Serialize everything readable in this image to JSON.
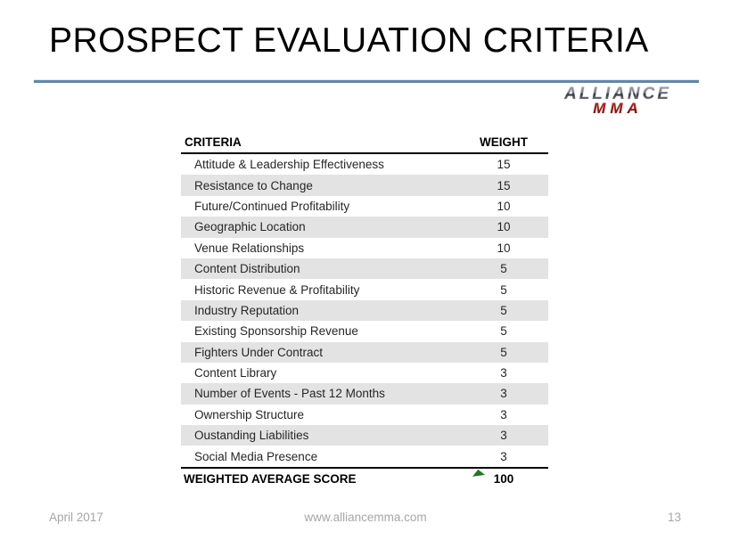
{
  "slide": {
    "title": "PROSPECT EVALUATION CRITERIA",
    "logo": {
      "line1": "ALLIANCE",
      "line2": "MMA"
    },
    "table": {
      "headers": {
        "criteria": "CRITERIA",
        "weight": "WEIGHT"
      },
      "rows": [
        {
          "criteria": "Attitude & Leadership Effectiveness",
          "weight": "15",
          "shaded": false
        },
        {
          "criteria": "Resistance to Change",
          "weight": "15",
          "shaded": true
        },
        {
          "criteria": "Future/Continued Profitability",
          "weight": "10",
          "shaded": false
        },
        {
          "criteria": "Geographic Location",
          "weight": "10",
          "shaded": true
        },
        {
          "criteria": "Venue Relationships",
          "weight": "10",
          "shaded": false
        },
        {
          "criteria": "Content Distribution",
          "weight": "5",
          "shaded": true
        },
        {
          "criteria": "Historic Revenue & Profitability",
          "weight": "5",
          "shaded": false
        },
        {
          "criteria": "Industry Reputation",
          "weight": "5",
          "shaded": true
        },
        {
          "criteria": "Existing Sponsorship Revenue",
          "weight": "5",
          "shaded": false
        },
        {
          "criteria": "Fighters Under Contract",
          "weight": "5",
          "shaded": true
        },
        {
          "criteria": "Content Library",
          "weight": "3",
          "shaded": false
        },
        {
          "criteria": "Number of Events - Past 12 Months",
          "weight": "3",
          "shaded": true
        },
        {
          "criteria": "Ownership Structure",
          "weight": "3",
          "shaded": false
        },
        {
          "criteria": "Oustanding Liabilities",
          "weight": "3",
          "shaded": true
        },
        {
          "criteria": "Social Media Presence",
          "weight": "3",
          "shaded": false
        }
      ],
      "total": {
        "label": "WEIGHTED AVERAGE SCORE",
        "value": "100"
      }
    },
    "footer": {
      "date": "April 2017",
      "url": "www.alliancemma.com",
      "page": "13"
    },
    "colors": {
      "divider_blue": "#5f87ab",
      "row_shade": "#e3e3e3",
      "logo_silver": "#9aa0a8",
      "logo_red": "#b92025",
      "footer_gray": "#a6a6a6",
      "comment_green": "#267326"
    }
  },
  "chart_data": {
    "type": "table",
    "title": "PROSPECT EVALUATION CRITERIA",
    "columns": [
      "CRITERIA",
      "WEIGHT"
    ],
    "rows": [
      [
        "Attitude & Leadership Effectiveness",
        15
      ],
      [
        "Resistance to Change",
        15
      ],
      [
        "Future/Continued Profitability",
        10
      ],
      [
        "Geographic Location",
        10
      ],
      [
        "Venue Relationships",
        10
      ],
      [
        "Content Distribution",
        5
      ],
      [
        "Historic Revenue & Profitability",
        5
      ],
      [
        "Industry Reputation",
        5
      ],
      [
        "Existing Sponsorship Revenue",
        5
      ],
      [
        "Fighters Under Contract",
        5
      ],
      [
        "Content Library",
        3
      ],
      [
        "Number of Events - Past 12 Months",
        3
      ],
      [
        "Ownership Structure",
        3
      ],
      [
        "Oustanding Liabilities",
        3
      ],
      [
        "Social Media Presence",
        3
      ]
    ],
    "total_row": [
      "WEIGHTED AVERAGE SCORE",
      100
    ]
  }
}
